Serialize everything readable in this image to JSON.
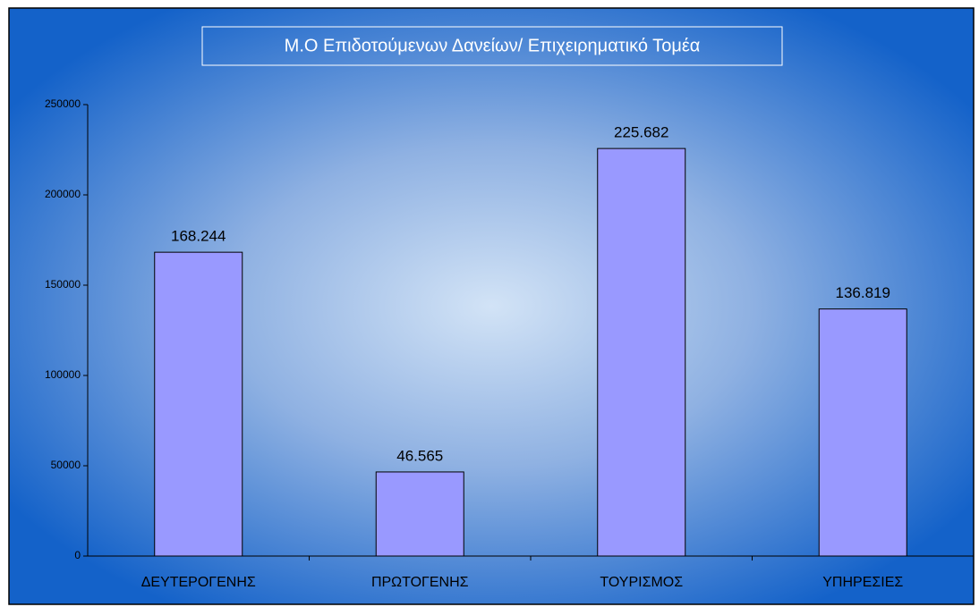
{
  "chart_data": {
    "type": "bar",
    "title": "Μ.Ο Επιδοτούμενων Δανείων/ Επιχειρηματικό Τομέα",
    "categories": [
      "ΔΕΥΤΕΡΟΓΕΝΗΣ",
      "ΠΡΩΤΟΓΕΝΗΣ",
      "ΤΟΥΡΙΣΜΟΣ",
      "ΥΠΗΡΕΣΙΕΣ"
    ],
    "values": [
      168244,
      46565,
      225682,
      136819
    ],
    "value_labels": [
      "168.244",
      "46.565",
      "225.682",
      "136.819"
    ],
    "color": "#9999ff",
    "ylim": [
      0,
      250000
    ],
    "yticks": [
      0,
      50000,
      100000,
      150000,
      200000,
      250000
    ],
    "grid": false
  }
}
